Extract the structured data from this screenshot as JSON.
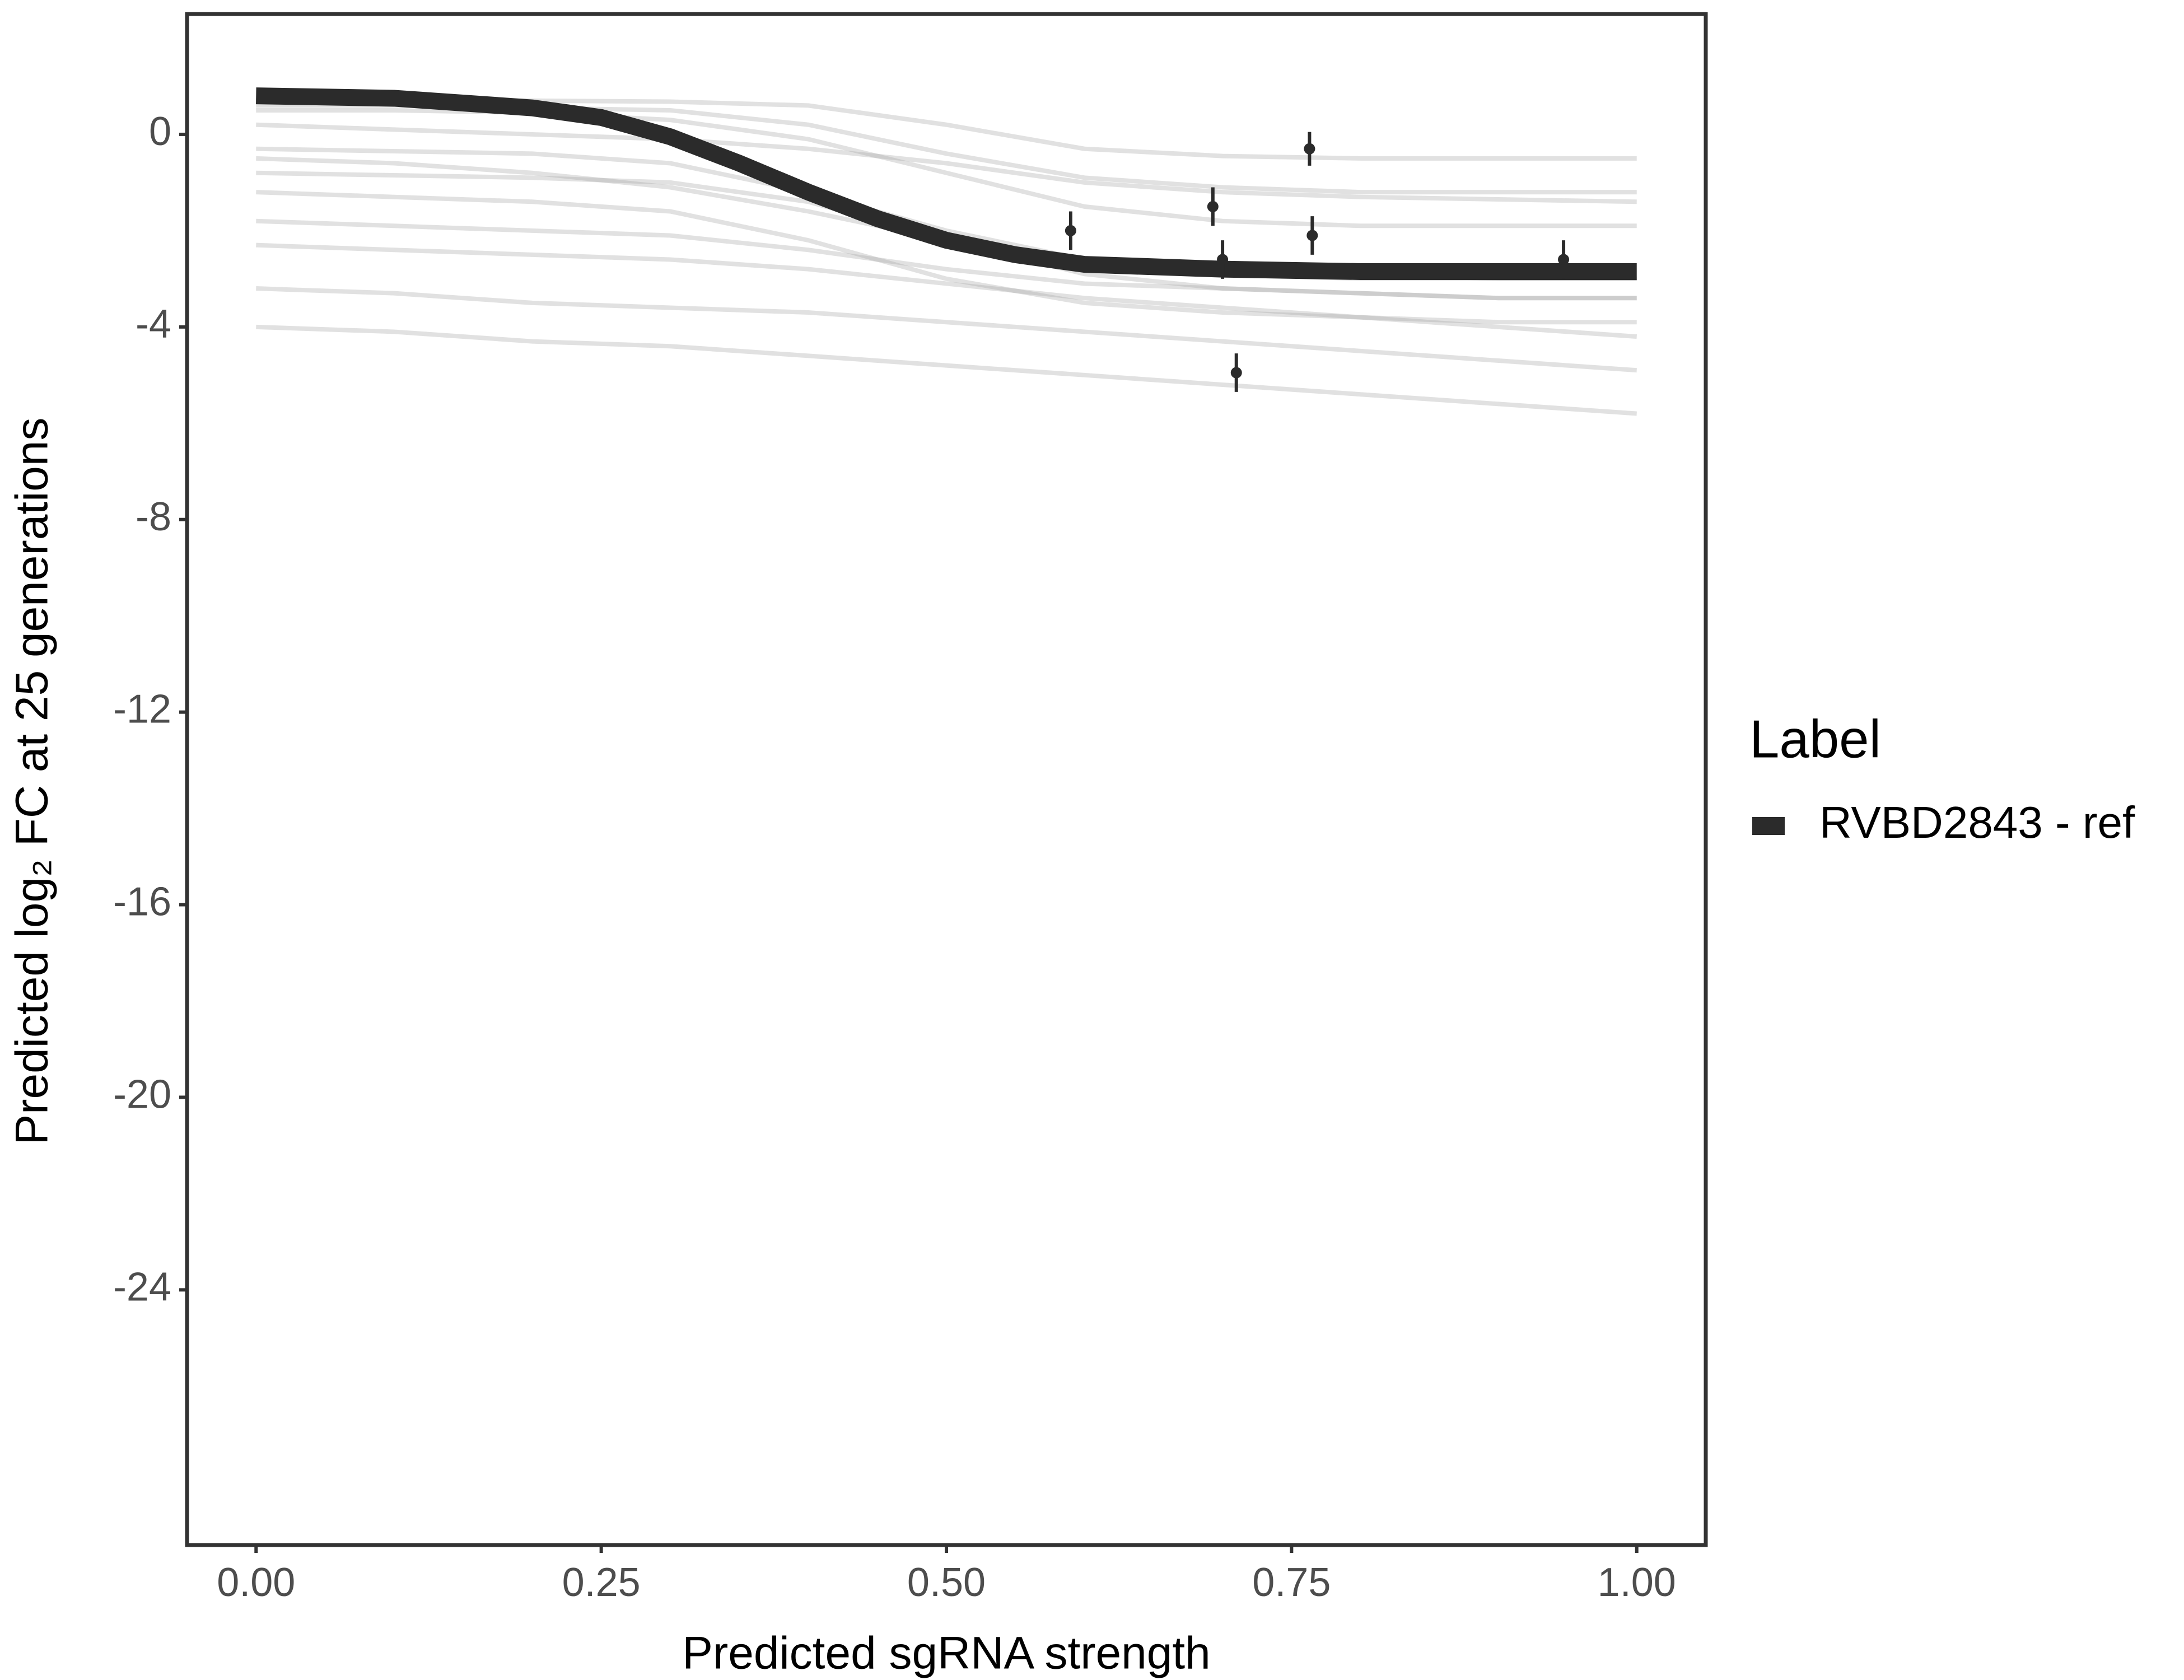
{
  "chart_data": {
    "type": "line",
    "y_label": "Predicted  log₂ FC at 25 generations",
    "x_label": "Predicted sgRNA strength",
    "legend_title": "Label",
    "xlim": [
      -0.05,
      1.05
    ],
    "ylim": [
      -29.3,
      2.5
    ],
    "xticks": [
      {
        "value": 0,
        "label": "0.00"
      },
      {
        "value": 0.25,
        "label": "0.25"
      },
      {
        "value": 0.5,
        "label": "0.50"
      },
      {
        "value": 0.75,
        "label": "0.75"
      },
      {
        "value": 1,
        "label": "1.00"
      }
    ],
    "yticks": [
      0,
      -4,
      -8,
      -12,
      -16,
      -20,
      -24
    ],
    "series": [
      {
        "name": "RVBD2843 - ref",
        "color": "#2b2b2b",
        "x": [
          0,
          0.1,
          0.2,
          0.25,
          0.3,
          0.35,
          0.4,
          0.45,
          0.5,
          0.55,
          0.6,
          0.7,
          0.8,
          0.9,
          1
        ],
        "values": [
          0.8,
          0.75,
          0.55,
          0.35,
          -0.05,
          -0.6,
          -1.2,
          -1.75,
          -2.2,
          -2.5,
          -2.7,
          -2.8,
          -2.85,
          -2.85,
          -2.85
        ]
      }
    ],
    "draws": {
      "color": "#a8a8a8",
      "x": [
        0,
        0.1,
        0.2,
        0.3,
        0.4,
        0.5,
        0.6,
        0.7,
        0.8,
        0.9,
        1
      ],
      "lines": [
        [
          0.7,
          0.7,
          0.7,
          0.68,
          0.6,
          0.2,
          -0.3,
          -0.45,
          -0.5,
          -0.5,
          -0.5
        ],
        [
          0.6,
          0.6,
          0.55,
          0.5,
          0.2,
          -0.4,
          -0.9,
          -1.1,
          -1.2,
          -1.2,
          -1.2
        ],
        [
          0.5,
          0.5,
          0.45,
          0.3,
          -0.1,
          -0.8,
          -1.5,
          -1.8,
          -1.9,
          -1.9,
          -1.9
        ],
        [
          0.2,
          0.1,
          0,
          -0.1,
          -0.3,
          -0.6,
          -1,
          -1.2,
          -1.3,
          -1.35,
          -1.4
        ],
        [
          -0.3,
          -0.35,
          -0.4,
          -0.6,
          -1.2,
          -2,
          -2.6,
          -2.9,
          -3,
          -3,
          -3
        ],
        [
          -0.5,
          -0.6,
          -0.8,
          -1.1,
          -1.6,
          -2.2,
          -2.6,
          -2.8,
          -2.9,
          -3,
          -3
        ],
        [
          -0.8,
          -0.85,
          -0.9,
          -1,
          -1.4,
          -2.2,
          -2.9,
          -3.2,
          -3.3,
          -3.4,
          -3.4
        ],
        [
          -1.2,
          -1.3,
          -1.4,
          -1.6,
          -2.2,
          -3,
          -3.5,
          -3.7,
          -3.8,
          -3.9,
          -3.9
        ],
        [
          -1.8,
          -1.9,
          -2,
          -2.1,
          -2.4,
          -2.8,
          -3.1,
          -3.2,
          -3.3,
          -3.4,
          -3.4
        ],
        [
          -2.3,
          -2.4,
          -2.5,
          -2.6,
          -2.8,
          -3.1,
          -3.4,
          -3.6,
          -3.8,
          -4,
          -4.2
        ],
        [
          -3.2,
          -3.3,
          -3.5,
          -3.6,
          -3.7,
          -3.9,
          -4.1,
          -4.3,
          -4.5,
          -4.7,
          -4.9
        ],
        [
          -4,
          -4.1,
          -4.3,
          -4.4,
          -4.6,
          -4.8,
          -5,
          -5.2,
          -5.4,
          -5.6,
          -5.8
        ]
      ]
    },
    "points": {
      "color": "#2b2b2b",
      "x": [
        0.59,
        0.693,
        0.7,
        0.71,
        0.763,
        0.765,
        0.947
      ],
      "values": [
        -2,
        -1.5,
        -2.6,
        -4.95,
        -0.3,
        -2.1,
        -2.6
      ],
      "errors": [
        0.4,
        0.4,
        0.4,
        0.4,
        0.35,
        0.4,
        0.4
      ]
    }
  }
}
